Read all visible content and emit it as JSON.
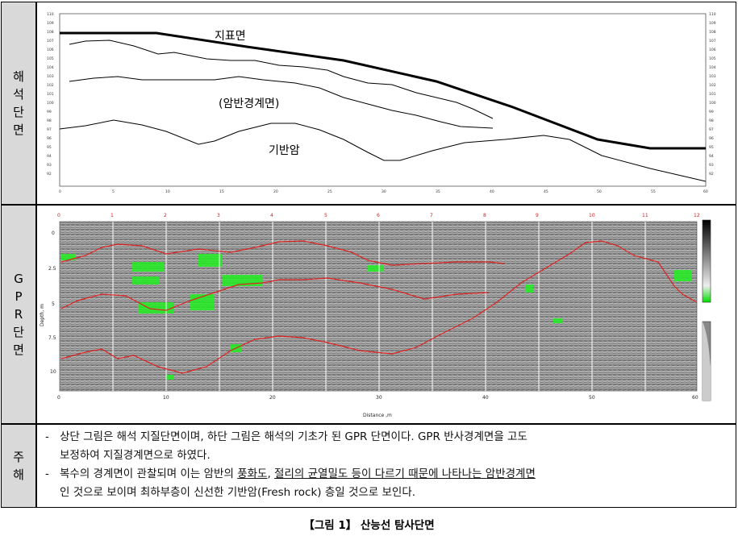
{
  "rows": {
    "top": {
      "label_chars": [
        "해",
        "석",
        "단",
        "면"
      ]
    },
    "middle": {
      "label_chars": [
        "G",
        "P",
        "R",
        "단",
        "면"
      ]
    },
    "bottom": {
      "label_chars": [
        "주",
        "해"
      ]
    }
  },
  "interpretation": {
    "labels": {
      "surface": "지표면",
      "weathered": "(암반경계면)",
      "bedrock": "기반암"
    },
    "x_ticks": [
      "0",
      "5",
      "10",
      "15",
      "20",
      "25",
      "30",
      "35",
      "40",
      "45",
      "50",
      "55",
      "60"
    ],
    "y_ticks": [
      "110",
      "109",
      "108",
      "107",
      "106",
      "105",
      "104",
      "103",
      "102",
      "101",
      "100",
      "99",
      "98",
      "97",
      "96",
      "95",
      "94",
      "93",
      "92"
    ]
  },
  "gpr": {
    "trace_numbers": [
      "0",
      "1",
      "2",
      "3",
      "4",
      "5",
      "6",
      "7",
      "8",
      "9",
      "10",
      "11",
      "12"
    ],
    "depth_ticks": [
      "0",
      "2.5",
      "5",
      "7.5",
      "10"
    ],
    "depth_label": "Depth, m",
    "distance_ticks": [
      "0",
      "10",
      "20",
      "30",
      "40",
      "50",
      "60"
    ],
    "distance_label": "Distance ,m"
  },
  "notes": {
    "line1a": "상단 그림은 해석 지질단면이며, 하단 그림은 해석의 기초가 된 GPR 단면이다. GPR 반사경계면을 고도",
    "line1b": "보정하여 지질경계면으로 하였다.",
    "line2_pre": "복수의 경계면이 관찰되며 이는 암반의 ",
    "line2_u1": "풍화도",
    "line2_mid": ", ",
    "line2_u2": "절리의 균열밀도 등이 다르기 때문에 나타나는 암반경계면",
    "line2b": "인 것으로 보이며 최하부층이 신선한 기반암(Fresh rock) 층일 것으로 보인다."
  },
  "caption": "【그림 1】 산능선 탐사단면"
}
